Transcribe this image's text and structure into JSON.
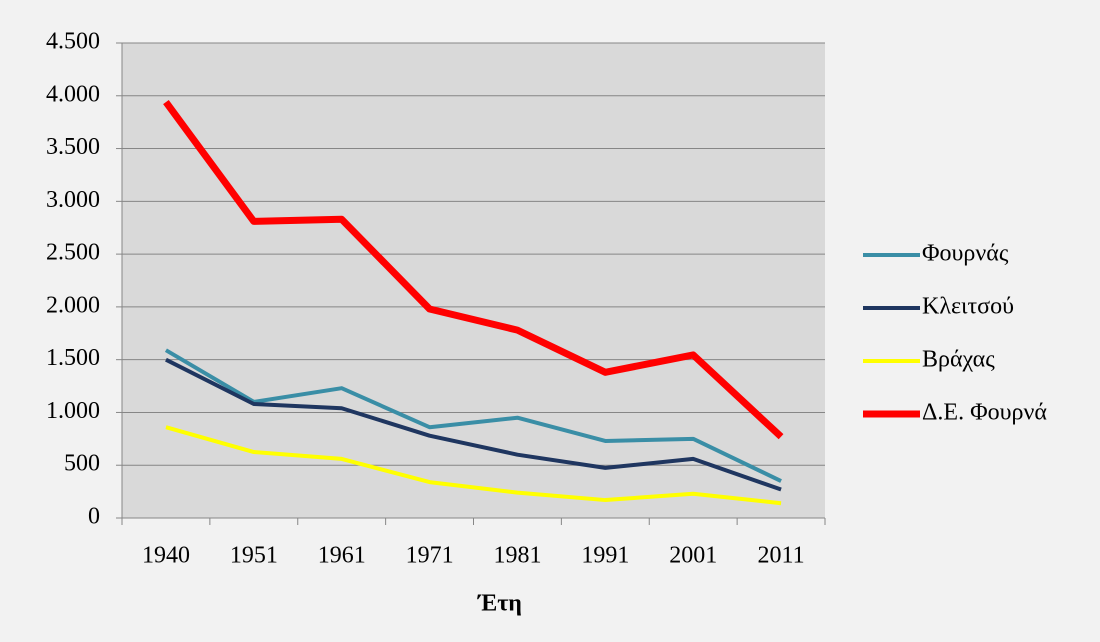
{
  "chart_data": {
    "type": "line",
    "x_label": "Έτη",
    "categories": [
      "1940",
      "1951",
      "1961",
      "1971",
      "1981",
      "1991",
      "2001",
      "2011"
    ],
    "series": [
      {
        "name": "Φουρνάς",
        "color": "#3a8ea6",
        "values": [
          1590,
          1100,
          1230,
          860,
          950,
          730,
          750,
          350
        ]
      },
      {
        "name": "Κλειτσού",
        "color": "#1f3660",
        "values": [
          1500,
          1080,
          1040,
          780,
          600,
          475,
          560,
          270
        ]
      },
      {
        "name": "Βράχας",
        "color": "#ffff00",
        "values": [
          860,
          625,
          560,
          340,
          240,
          170,
          230,
          140
        ]
      },
      {
        "name": "Δ.Ε. Φουρνά",
        "color": "#ff0000",
        "values": [
          3940,
          2810,
          2830,
          1980,
          1780,
          1380,
          1545,
          770
        ]
      }
    ],
    "ylim": [
      0,
      4500
    ],
    "yticks": [
      0,
      500,
      {
        "value": 1000,
        "label": "1.000"
      },
      {
        "value": 1500,
        "label": "1.500"
      },
      {
        "value": 2000,
        "label": "2.000"
      },
      {
        "value": 2500,
        "label": "2.500"
      },
      {
        "value": 3000,
        "label": "3.000"
      },
      {
        "value": 3500,
        "label": "3.500"
      },
      {
        "value": 4000,
        "label": "4.000"
      },
      {
        "value": 4500,
        "label": "4.500"
      }
    ],
    "grid": true,
    "legend": "right"
  }
}
